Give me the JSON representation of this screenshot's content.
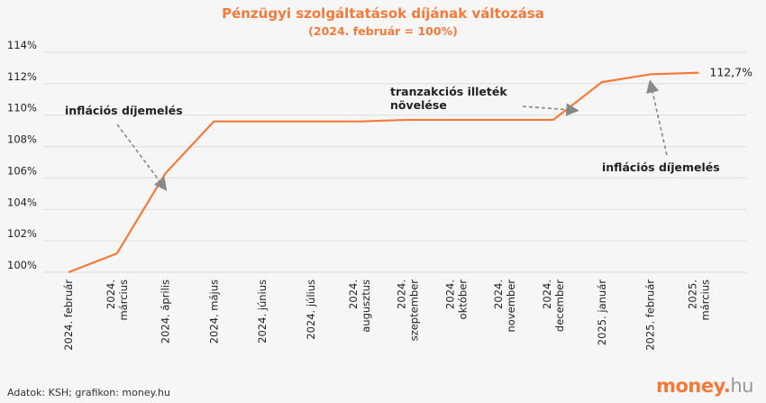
{
  "title": "Pénzügyi szolgáltatások díjának változása",
  "subtitle": "(2024. február = 100%)",
  "source": "Adatok: KSH; grafikon: money.hu",
  "logo": {
    "main": "money",
    "dot": ".",
    "suffix": "hu"
  },
  "colors": {
    "line": "#f47a3b",
    "title": "#f47a3b",
    "grid": "#dcdcdc",
    "arrow": "#888888"
  },
  "chart_data": {
    "type": "line",
    "title": "Pénzügyi szolgáltatások díjának változása",
    "subtitle": "(2024. február = 100%)",
    "categories": [
      [
        "2024. február"
      ],
      [
        "2024.",
        "március"
      ],
      [
        "2024. április"
      ],
      [
        "2024. május"
      ],
      [
        "2024. június"
      ],
      [
        "2024. július"
      ],
      [
        "2024.",
        "augusztus"
      ],
      [
        "2024.",
        "szeptember"
      ],
      [
        "2024.",
        "október"
      ],
      [
        "2024.",
        "november"
      ],
      [
        "2024.",
        "december"
      ],
      [
        "2025. január"
      ],
      [
        "2025. február"
      ],
      [
        "2025.",
        "március"
      ]
    ],
    "values": [
      100.0,
      101.2,
      106.3,
      109.6,
      109.6,
      109.6,
      109.6,
      109.7,
      109.7,
      109.7,
      109.7,
      112.1,
      112.6,
      112.7
    ],
    "ylim": [
      100,
      114
    ],
    "yticks": [
      100,
      102,
      104,
      106,
      108,
      110,
      112,
      114
    ],
    "ytick_labels": [
      "100%",
      "102%",
      "104%",
      "106%",
      "108%",
      "110%",
      "112%",
      "114%"
    ],
    "end_label": "112,7%",
    "grid": true,
    "legend": "none",
    "annotations": [
      {
        "text": [
          "inflációs díjemelés"
        ],
        "target_index": 2,
        "target_value": 105.3
      },
      {
        "text": [
          "tranzakciós illeték",
          "növelése"
        ],
        "target_index": 11,
        "target_value": 110.3
      },
      {
        "text": [
          "inflációs díjemelés"
        ],
        "target_index": 12,
        "target_value": 112.1
      }
    ]
  }
}
